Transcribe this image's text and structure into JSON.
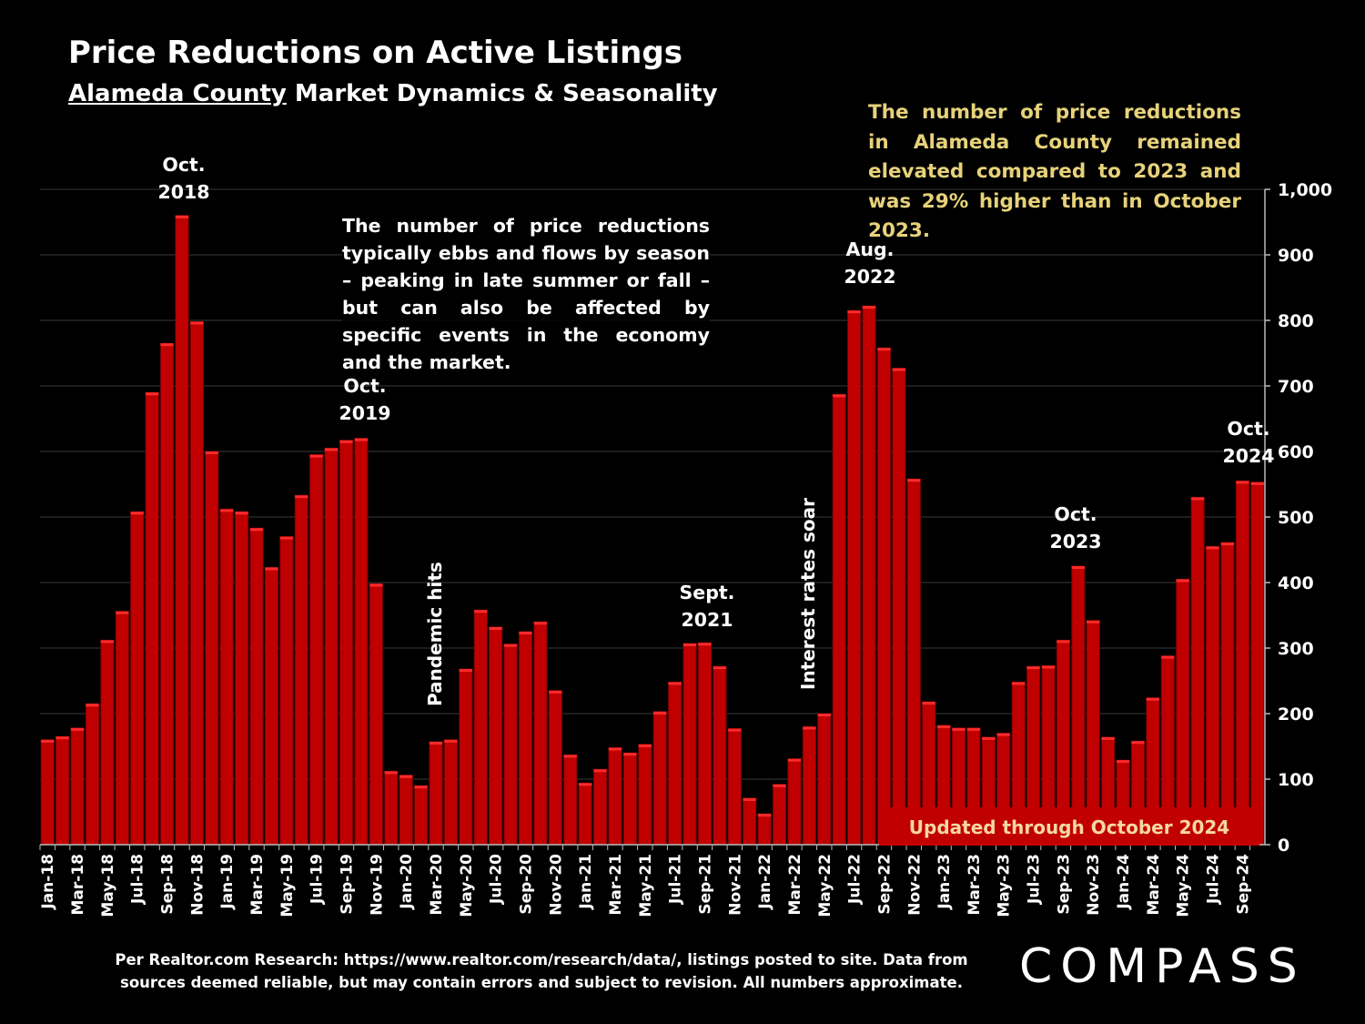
{
  "header": {
    "title": "Price Reductions on Active Listings",
    "subtitle_place": "Alameda County",
    "subtitle_rest": " Market Dynamics & Seasonality"
  },
  "notes": {
    "right": "The number of price reductions in Alameda County remained elevated compared to 2023 and was 29% higher than in October 2023.",
    "middle": "The number of price reductions typically ebbs and flows by season – peaking in late summer or fall – but can also be affected by specific events in the economy and the market."
  },
  "annotations": {
    "oct2018": [
      "Oct.",
      "2018"
    ],
    "oct2019": [
      "Oct.",
      "2019"
    ],
    "pandemic": "Pandemic hits",
    "sept2021": [
      "Sept.",
      "2021"
    ],
    "rates": "Interest rates soar",
    "aug2022": [
      "Aug.",
      "2022"
    ],
    "oct2023": [
      "Oct.",
      "2023"
    ],
    "oct2024": [
      "Oct.",
      "2024"
    ]
  },
  "updated_label": "Updated through October 2024",
  "footer": {
    "line1": "Per Realtor.com Research:  https://www.realtor.com/research/data/, listings posted to site. Data from",
    "line2": "sources deemed reliable, but may contain errors and subject to revision. All numbers approximate."
  },
  "logo": "COMPASS",
  "colors": {
    "bar": "#c00000",
    "bar_edge": "#ff2a2a",
    "note": "#e7d27a",
    "background": "#000000"
  },
  "chart_data": {
    "type": "bar",
    "title": "Price Reductions on Active Listings",
    "xlabel": "",
    "ylabel": "",
    "ylim": [
      0,
      1000
    ],
    "yticks": [
      0,
      100,
      200,
      300,
      400,
      500,
      600,
      700,
      800,
      900,
      1000
    ],
    "ytick_labels": [
      "0",
      "100",
      "200",
      "300",
      "400",
      "500",
      "600",
      "700",
      "800",
      "900",
      "1,000"
    ],
    "grid": true,
    "categories": [
      "Jan-18",
      "Feb-18",
      "Mar-18",
      "Apr-18",
      "May-18",
      "Jun-18",
      "Jul-18",
      "Aug-18",
      "Sep-18",
      "Oct-18",
      "Nov-18",
      "Dec-18",
      "Jan-19",
      "Feb-19",
      "Mar-19",
      "Apr-19",
      "May-19",
      "Jun-19",
      "Jul-19",
      "Aug-19",
      "Sep-19",
      "Oct-19",
      "Nov-19",
      "Dec-19",
      "Jan-20",
      "Feb-20",
      "Mar-20",
      "Apr-20",
      "May-20",
      "Jun-20",
      "Jul-20",
      "Aug-20",
      "Sep-20",
      "Oct-20",
      "Nov-20",
      "Dec-20",
      "Jan-21",
      "Feb-21",
      "Mar-21",
      "Apr-21",
      "May-21",
      "Jun-21",
      "Jul-21",
      "Aug-21",
      "Sep-21",
      "Oct-21",
      "Nov-21",
      "Dec-21",
      "Jan-22",
      "Feb-22",
      "Mar-22",
      "Apr-22",
      "May-22",
      "Jun-22",
      "Jul-22",
      "Aug-22",
      "Sep-22",
      "Oct-22",
      "Nov-22",
      "Dec-22",
      "Jan-23",
      "Feb-23",
      "Mar-23",
      "Apr-23",
      "May-23",
      "Jun-23",
      "Jul-23",
      "Aug-23",
      "Sep-23",
      "Oct-23",
      "Nov-23",
      "Dec-23",
      "Jan-24",
      "Feb-24",
      "Mar-24",
      "Apr-24",
      "May-24",
      "Jun-24",
      "Jul-24",
      "Aug-24",
      "Sep-24",
      "Oct-24"
    ],
    "values": [
      160,
      165,
      178,
      215,
      312,
      356,
      508,
      690,
      765,
      960,
      798,
      600,
      512,
      508,
      483,
      423,
      470,
      533,
      595,
      605,
      617,
      620,
      398,
      112,
      106,
      90,
      157,
      160,
      268,
      358,
      332,
      306,
      325,
      340,
      235,
      137,
      94,
      115,
      148,
      140,
      153,
      203,
      248,
      307,
      308,
      272,
      177,
      71,
      47,
      92,
      131,
      180,
      200,
      687,
      815,
      822,
      758,
      727,
      558,
      218,
      182,
      178,
      178,
      164,
      170,
      248,
      272,
      273,
      312,
      425,
      342,
      164,
      129,
      158,
      224,
      288,
      405,
      530,
      455,
      461,
      555,
      553
    ]
  }
}
